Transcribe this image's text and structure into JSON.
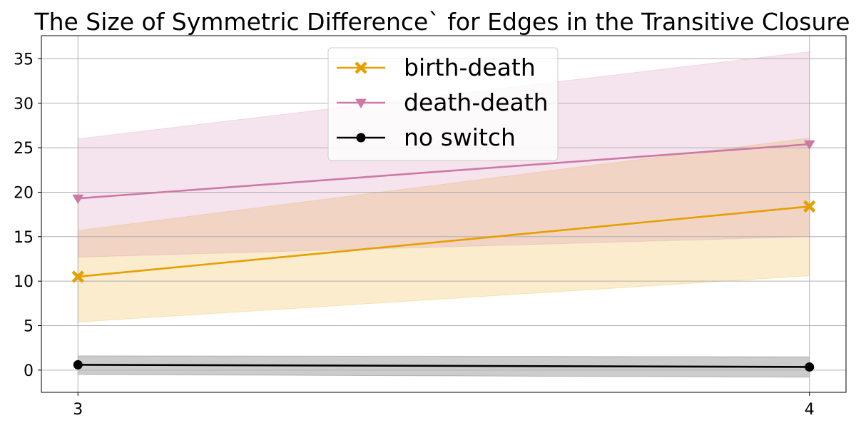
{
  "chart_data": {
    "type": "line",
    "title": "The Size of Symmetric Difference` for Edges in the Transitive Closure",
    "xlabel": "",
    "ylabel": "",
    "x": [
      3,
      4
    ],
    "xlim": [
      2.95,
      4.05
    ],
    "ylim": [
      -2.5,
      37.6
    ],
    "x_ticks": [
      "3",
      "4"
    ],
    "y_ticks": [
      "0",
      "5",
      "10",
      "15",
      "20",
      "25",
      "30",
      "35"
    ],
    "grid": true,
    "legend_position": "top-center",
    "series": [
      {
        "name": "birth-death",
        "color": "#E69F00",
        "marker": "x-filled",
        "values": [
          10.5,
          18.4
        ],
        "lower": [
          5.4,
          10.6
        ],
        "upper": [
          15.7,
          26.1
        ]
      },
      {
        "name": "death-death",
        "color": "#CC79A7",
        "marker": "triangle-down",
        "values": [
          19.3,
          25.4
        ],
        "lower": [
          12.7,
          15.0
        ],
        "upper": [
          26.0,
          35.8
        ]
      },
      {
        "name": "no switch",
        "color": "#000000",
        "marker": "circle",
        "values": [
          0.6,
          0.35
        ],
        "lower": [
          -0.5,
          -0.8
        ],
        "upper": [
          1.6,
          1.5
        ]
      }
    ]
  }
}
